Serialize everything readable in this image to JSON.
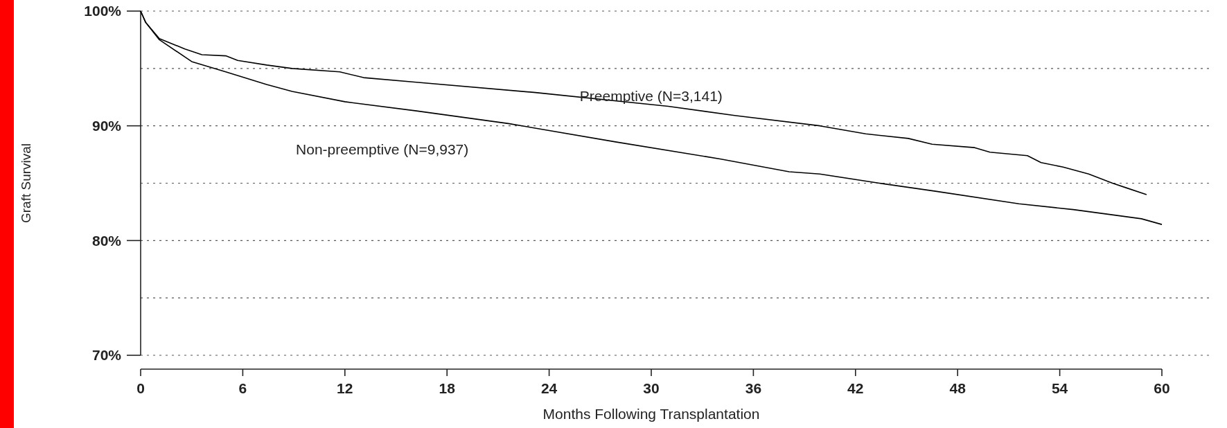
{
  "chart_data": {
    "type": "line",
    "xlabel": "Months Following Transplantation",
    "ylabel": "Graft Survival",
    "xlim": [
      0,
      60
    ],
    "xticks": [
      0,
      6,
      12,
      18,
      24,
      30,
      36,
      42,
      48,
      54,
      60
    ],
    "ylim": [
      70,
      100
    ],
    "yticks": [
      {
        "value": 70,
        "label": "70%"
      },
      {
        "value": 75,
        "label": null
      },
      {
        "value": 80,
        "label": "80%"
      },
      {
        "value": 85,
        "label": null
      },
      {
        "value": 90,
        "label": "90%"
      },
      {
        "value": 95,
        "label": null
      },
      {
        "value": 100,
        "label": "100%"
      }
    ],
    "grid": "y",
    "legend": false,
    "series": [
      {
        "name": "Preemptive (N=3,141)",
        "color": "#000000",
        "x": [
          0,
          0.3,
          1.1,
          2.6,
          3.6,
          5.0,
          5.7,
          7.4,
          8.9,
          11.7,
          13.1,
          16.2,
          23.2,
          31.0,
          34.9,
          39.9,
          42.6,
          45.1,
          46.5,
          49.0,
          49.9,
          52.1,
          52.9,
          54.2,
          55.7,
          57.1,
          57.9,
          59.1
        ],
        "values": [
          100,
          99.0,
          97.6,
          96.7,
          96.2,
          96.1,
          95.7,
          95.3,
          95.0,
          94.7,
          94.2,
          93.8,
          92.9,
          91.7,
          90.9,
          90.0,
          89.3,
          88.9,
          88.4,
          88.1,
          87.7,
          87.4,
          86.8,
          86.4,
          85.8,
          85.0,
          84.6,
          84.0
        ]
      },
      {
        "name": "Non-preemptive (N=9,937)",
        "color": "#000000",
        "x": [
          0,
          0.3,
          1.1,
          3.0,
          5.0,
          7.4,
          8.9,
          12.0,
          16.2,
          21.6,
          27.9,
          34.1,
          38.1,
          39.9,
          43.4,
          46.7,
          51.6,
          54.8,
          57.3,
          58.8,
          60
        ],
        "values": [
          100,
          99.0,
          97.5,
          95.6,
          94.7,
          93.6,
          93.0,
          92.1,
          91.3,
          90.2,
          88.6,
          87.1,
          86.0,
          85.8,
          85.0,
          84.3,
          83.2,
          82.7,
          82.2,
          81.9,
          81.4
        ]
      }
    ]
  }
}
